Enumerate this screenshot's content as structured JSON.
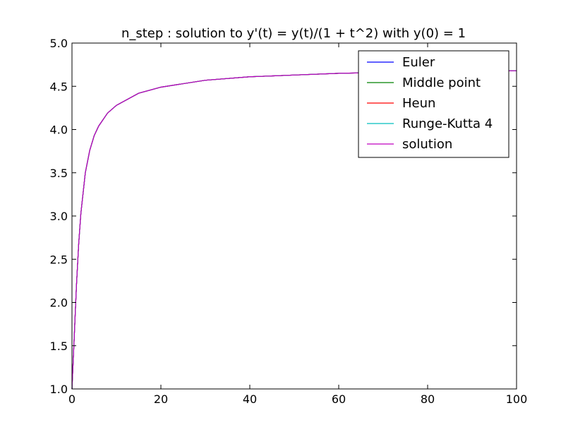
{
  "chart_data": {
    "type": "line",
    "title": "n_step : solution to y'(t) = y(t)/(1 + t^2) with y(0) = 1",
    "xlabel": "",
    "ylabel": "",
    "xlim": [
      0,
      100
    ],
    "ylim": [
      1.0,
      5.0
    ],
    "xticks": [
      0,
      20,
      40,
      60,
      80,
      100
    ],
    "xtick_labels": [
      "0",
      "20",
      "40",
      "60",
      "80",
      "100"
    ],
    "yticks": [
      1.0,
      1.5,
      2.0,
      2.5,
      3.0,
      3.5,
      4.0,
      4.5,
      5.0
    ],
    "ytick_labels": [
      "1.0",
      "1.5",
      "2.0",
      "2.5",
      "3.0",
      "3.5",
      "4.0",
      "4.5",
      "5.0"
    ],
    "grid": false,
    "legend_position": "top-right",
    "x": [
      0,
      0.5,
      1,
      1.5,
      2,
      3,
      4,
      5,
      6,
      8,
      10,
      15,
      20,
      30,
      40,
      50,
      60,
      70,
      80,
      90,
      100
    ],
    "series": [
      {
        "name": "Euler",
        "color": "#0000ff",
        "values": [
          1.0,
          1.59,
          2.19,
          2.67,
          3.03,
          3.5,
          3.76,
          3.93,
          4.04,
          4.19,
          4.28,
          4.42,
          4.49,
          4.57,
          4.61,
          4.63,
          4.65,
          4.66,
          4.67,
          4.67,
          4.68
        ]
      },
      {
        "name": "Middle point",
        "color": "#008000",
        "values": [
          1.0,
          1.59,
          2.19,
          2.67,
          3.03,
          3.5,
          3.76,
          3.93,
          4.04,
          4.19,
          4.28,
          4.42,
          4.49,
          4.57,
          4.61,
          4.63,
          4.65,
          4.66,
          4.67,
          4.67,
          4.68
        ]
      },
      {
        "name": "Heun",
        "color": "#ff0000",
        "values": [
          1.0,
          1.59,
          2.19,
          2.67,
          3.03,
          3.5,
          3.76,
          3.93,
          4.04,
          4.19,
          4.28,
          4.42,
          4.49,
          4.57,
          4.61,
          4.63,
          4.65,
          4.66,
          4.67,
          4.67,
          4.68
        ]
      },
      {
        "name": "Runge-Kutta 4",
        "color": "#00bfbf",
        "values": [
          1.0,
          1.59,
          2.19,
          2.67,
          3.03,
          3.5,
          3.76,
          3.93,
          4.04,
          4.19,
          4.28,
          4.42,
          4.49,
          4.57,
          4.61,
          4.63,
          4.65,
          4.66,
          4.67,
          4.67,
          4.68
        ]
      },
      {
        "name": "solution",
        "color": "#bf00bf",
        "values": [
          1.0,
          1.59,
          2.19,
          2.67,
          3.03,
          3.5,
          3.76,
          3.93,
          4.04,
          4.19,
          4.28,
          4.42,
          4.49,
          4.57,
          4.61,
          4.63,
          4.65,
          4.66,
          4.67,
          4.67,
          4.68
        ]
      }
    ]
  }
}
